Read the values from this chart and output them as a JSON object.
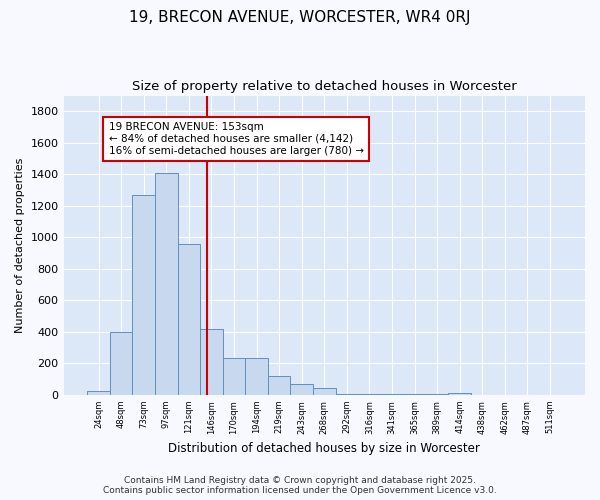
{
  "title1": "19, BRECON AVENUE, WORCESTER, WR4 0RJ",
  "title2": "Size of property relative to detached houses in Worcester",
  "xlabel": "Distribution of detached houses by size in Worcester",
  "ylabel": "Number of detached properties",
  "bar_color": "#c8d8ee",
  "bar_edge_color": "#6090c0",
  "background_color": "#dce8f8",
  "fig_background_color": "#f8f8ff",
  "grid_color": "#ffffff",
  "annotation_line_color": "#cc0000",
  "annotation_box_color": "#cc0000",
  "annotation_text_line1": "19 BRECON AVENUE: 153sqm",
  "annotation_text_line2": "← 84% of detached houses are smaller (4,142)",
  "annotation_text_line3": "16% of semi-detached houses are larger (780) →",
  "categories": [
    "24sqm",
    "48sqm",
    "73sqm",
    "97sqm",
    "121sqm",
    "146sqm",
    "170sqm",
    "194sqm",
    "219sqm",
    "243sqm",
    "268sqm",
    "292sqm",
    "316sqm",
    "341sqm",
    "365sqm",
    "389sqm",
    "414sqm",
    "438sqm",
    "462sqm",
    "487sqm",
    "511sqm"
  ],
  "bar_heights": [
    25,
    400,
    1270,
    1410,
    960,
    420,
    235,
    235,
    120,
    70,
    45,
    5,
    5,
    5,
    5,
    5,
    15,
    0,
    0,
    0,
    0
  ],
  "ylim": [
    0,
    1900
  ],
  "yticks": [
    0,
    200,
    400,
    600,
    800,
    1000,
    1200,
    1400,
    1600,
    1800
  ],
  "footer_text": "Contains HM Land Registry data © Crown copyright and database right 2025.\nContains public sector information licensed under the Open Government Licence v3.0."
}
